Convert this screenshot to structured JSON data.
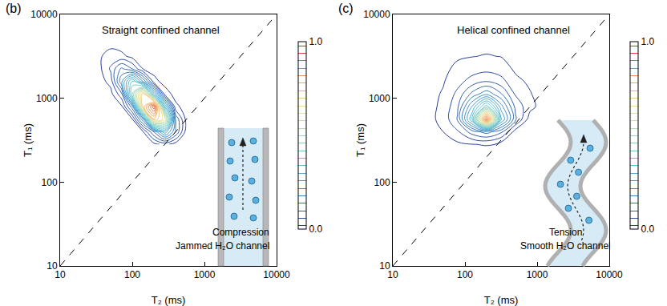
{
  "chart_data": [
    {
      "type": "contour",
      "panel_label": "(b)",
      "title": "Straight confined channel",
      "x_label": "T₂ (ms)",
      "y_label": "T₁ (ms)",
      "log": true,
      "grid": false,
      "xlim": [
        10,
        10000
      ],
      "ylim": [
        10,
        10000
      ],
      "xticks": [
        10,
        100,
        1000,
        10000
      ],
      "yticks": [
        10,
        100,
        1000,
        10000
      ],
      "x": [
        35,
        50,
        71,
        100,
        141,
        200,
        282,
        398,
        562
      ],
      "y": [
        282,
        398,
        562,
        794,
        1122,
        1585,
        2239,
        3162,
        4467
      ],
      "z": [
        [
          0,
          0,
          0,
          0,
          0,
          0.007,
          0.032,
          0,
          0
        ],
        [
          0,
          0,
          0,
          0,
          0.017,
          0.143,
          0.289,
          0.141,
          0
        ],
        [
          0,
          0,
          0,
          0.017,
          0.209,
          0.733,
          0.639,
          0.137,
          0.007
        ],
        [
          0,
          0,
          0.011,
          0.164,
          0.718,
          0.935,
          0.348,
          0.032,
          0
        ],
        [
          0,
          0.005,
          0.088,
          0.468,
          0.733,
          0.34,
          0.047,
          0.002,
          0
        ],
        [
          0.002,
          0.034,
          0.211,
          0.395,
          0.222,
          0.037,
          0.001,
          0,
          0
        ],
        [
          0.009,
          0.066,
          0.15,
          0.1,
          0.02,
          0.001,
          0,
          0,
          0
        ],
        [
          0.014,
          0.039,
          0.031,
          0.008,
          0,
          0,
          0,
          0,
          0
        ],
        [
          0.007,
          0.007,
          0.001,
          0,
          0,
          0,
          0,
          0,
          0
        ]
      ],
      "contour_levels": {
        "start": 0.02,
        "end": 0.98,
        "size": 0.04
      },
      "colorbar": {
        "range": [
          0,
          1
        ],
        "ticks": [
          {
            "value": 0,
            "label": "0.0"
          },
          {
            "value": 1,
            "label": "1.0"
          }
        ]
      },
      "reference_line": {
        "x": [
          10,
          10000
        ],
        "y": [
          10,
          10000
        ],
        "line_style": "dashed"
      },
      "annotations": [
        "Compression",
        "Jammed H₂O channel"
      ]
    },
    {
      "type": "contour",
      "panel_label": "(c)",
      "title": "Helical confined channel",
      "x_label": "T₂ (ms)",
      "y_label": "T₁ (ms)",
      "log": true,
      "grid": false,
      "xlim": [
        10,
        10000
      ],
      "ylim": [
        10,
        10000
      ],
      "xticks": [
        10,
        100,
        1000,
        10000
      ],
      "yticks": [
        10,
        100,
        1000,
        10000
      ],
      "x": [
        32,
        50,
        79,
        126,
        200,
        316,
        501,
        794,
        1259
      ],
      "y": [
        200,
        282,
        398,
        562,
        794,
        1122,
        1585,
        2239,
        3162,
        4467
      ],
      "z": [
        [
          0.001,
          0.001,
          0.002,
          0.003,
          0.003,
          0,
          0,
          0,
          0
        ],
        [
          0.002,
          0.006,
          0.012,
          0.019,
          0.022,
          0,
          0,
          0,
          0
        ],
        [
          0.007,
          0.02,
          0.054,
          0.12,
          0.157,
          0.11,
          0,
          0,
          0
        ],
        [
          0.01,
          0.032,
          0.104,
          0.34,
          0.89,
          0.31,
          0.108,
          0,
          0
        ],
        [
          0.009,
          0.029,
          0.093,
          0.265,
          0.45,
          0.24,
          0.089,
          0.033,
          0
        ],
        [
          0.008,
          0.024,
          0.071,
          0.153,
          0.21,
          0.145,
          0.055,
          0.023,
          0
        ],
        [
          0.006,
          0.017,
          0.045,
          0.078,
          0.1,
          0.076,
          0.029,
          0.014,
          0.006
        ],
        [
          0.004,
          0.012,
          0.028,
          0.04,
          0.047,
          0.038,
          0.014,
          0.007,
          0.004
        ],
        [
          0.003,
          0.008,
          0.016,
          0.019,
          0.022,
          0.019,
          0.006,
          0.004,
          0.002
        ],
        [
          0.002,
          0.005,
          0.009,
          0.009,
          0.011,
          0.009,
          0.003,
          0.002,
          0.001
        ]
      ],
      "contour_levels": {
        "start": 0.02,
        "end": 0.98,
        "size": 0.04
      },
      "colorbar": {
        "range": [
          0,
          1
        ],
        "ticks": [
          {
            "value": 0,
            "label": "0.0"
          },
          {
            "value": 1,
            "label": "1.0"
          }
        ]
      },
      "reference_line": {
        "x": [
          10,
          10000
        ],
        "y": [
          10,
          10000
        ],
        "line_style": "dashed"
      },
      "annotations": [
        "Tension",
        "Smooth H₂O channel"
      ]
    }
  ]
}
